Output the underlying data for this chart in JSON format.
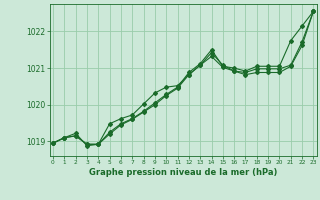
{
  "title": "Graphe pression niveau de la mer (hPa)",
  "background_color": "#cce8d8",
  "grid_color": "#99ccaa",
  "line_color": "#1a6b2a",
  "xlim": [
    -0.3,
    23.3
  ],
  "ylim": [
    1018.6,
    1022.75
  ],
  "yticks": [
    1019,
    1020,
    1021,
    1022
  ],
  "xticks": [
    0,
    1,
    2,
    3,
    4,
    5,
    6,
    7,
    8,
    9,
    10,
    11,
    12,
    13,
    14,
    15,
    16,
    17,
    18,
    19,
    20,
    21,
    22,
    23
  ],
  "series1_x": [
    0,
    1,
    2,
    3,
    4,
    5,
    6,
    7,
    8,
    9,
    10,
    11,
    12,
    13,
    14,
    15,
    16,
    17,
    18,
    19,
    20,
    21,
    22,
    23
  ],
  "series1_y": [
    1018.95,
    1019.1,
    1019.15,
    1018.92,
    1018.92,
    1019.25,
    1019.48,
    1019.62,
    1019.82,
    1020.05,
    1020.28,
    1020.48,
    1020.88,
    1021.12,
    1021.5,
    1021.05,
    1021.0,
    1020.92,
    1021.05,
    1021.05,
    1021.05,
    1021.75,
    1022.15,
    1022.55
  ],
  "series2_x": [
    0,
    1,
    2,
    3,
    4,
    5,
    6,
    7,
    8,
    9,
    10,
    11,
    12,
    13,
    14,
    15,
    16,
    17,
    18,
    19,
    20,
    21,
    22,
    23
  ],
  "series2_y": [
    1018.95,
    1019.1,
    1019.15,
    1018.92,
    1018.92,
    1019.2,
    1019.45,
    1019.6,
    1019.8,
    1020.0,
    1020.25,
    1020.45,
    1020.82,
    1021.08,
    1021.42,
    1021.08,
    1020.92,
    1020.82,
    1020.88,
    1020.88,
    1020.88,
    1021.05,
    1021.62,
    1022.55
  ],
  "series3_x": [
    0,
    1,
    2,
    3,
    4,
    5,
    6,
    7,
    8,
    9,
    10,
    11,
    12,
    13,
    14,
    15,
    16,
    17,
    18,
    19,
    20,
    21,
    22,
    23
  ],
  "series3_y": [
    1018.95,
    1019.1,
    1019.22,
    1018.88,
    1018.92,
    1019.48,
    1019.62,
    1019.72,
    1020.02,
    1020.32,
    1020.48,
    1020.52,
    1020.82,
    1021.08,
    1021.32,
    1021.02,
    1020.92,
    1020.88,
    1020.98,
    1020.98,
    1020.98,
    1021.08,
    1021.72,
    1022.55
  ]
}
